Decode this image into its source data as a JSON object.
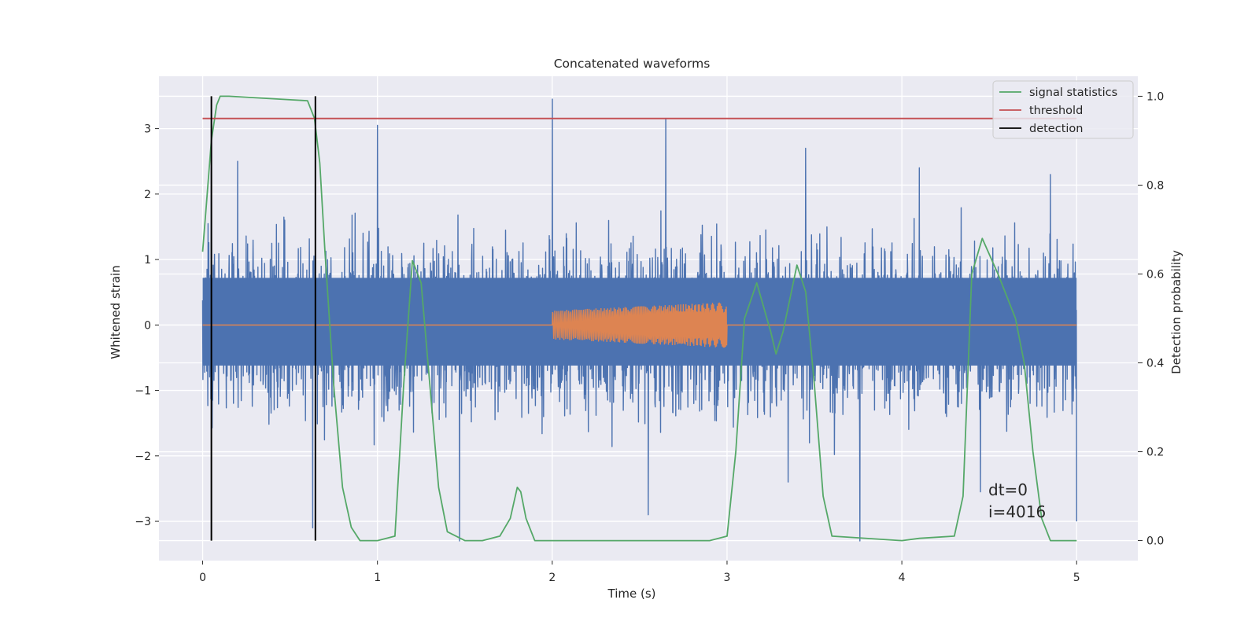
{
  "chart_data": {
    "type": "line",
    "title": "Concatenated waveforms",
    "xlabel": "Time (s)",
    "ylabel": "Whitened strain",
    "y2label": "Detection probability",
    "xlim": [
      -0.25,
      5.35
    ],
    "ylim": [
      -3.6,
      3.8
    ],
    "y2lim": [
      -0.045,
      1.045
    ],
    "x_ticks": [
      "0",
      "1",
      "2",
      "3",
      "4",
      "5"
    ],
    "y_ticks": [
      "−3",
      "−2",
      "−1",
      "0",
      "1",
      "2",
      "3"
    ],
    "y2_ticks": [
      "0.0",
      "0.2",
      "0.4",
      "0.6",
      "0.8",
      "1.0"
    ],
    "grid": true,
    "legend_position": "top-right",
    "legend": [
      "signal statistics",
      "threshold",
      "detection"
    ],
    "annotation_lines": [
      "dt=0",
      "i=4016"
    ],
    "colors": {
      "background": "#EAEAF2",
      "grid": "#FFFFFF",
      "strain": "#4C72B0",
      "waveform": "#DD8452",
      "statistics": "#55A868",
      "threshold": "#C44E52",
      "detection": "#000000"
    },
    "series": [
      {
        "name": "",
        "axis": "left",
        "kind": "noise",
        "x_range": [
          0,
          5
        ],
        "typical_abs_max": 2.3,
        "peak_points": [
          [
            0.05,
            2.4
          ],
          [
            0.2,
            2.5
          ],
          [
            0.63,
            -3.1
          ],
          [
            1.0,
            3.05
          ],
          [
            1.47,
            -3.3
          ],
          [
            2.0,
            3.45
          ],
          [
            2.55,
            -2.9
          ],
          [
            2.65,
            3.15
          ],
          [
            3.35,
            -2.4
          ],
          [
            3.45,
            2.7
          ],
          [
            3.76,
            -3.3
          ],
          [
            4.1,
            2.4
          ],
          [
            4.45,
            -2.55
          ],
          [
            4.85,
            2.3
          ],
          [
            5.0,
            -3.0
          ]
        ]
      },
      {
        "name": "",
        "axis": "left",
        "kind": "chirp",
        "x_range": [
          2.0,
          3.0
        ],
        "amplitude_start": 0.22,
        "amplitude_end": 0.35
      },
      {
        "name": "signal statistics",
        "axis": "right",
        "x": [
          0.0,
          0.02,
          0.05,
          0.08,
          0.1,
          0.15,
          0.6,
          0.64,
          0.67,
          0.7,
          0.75,
          0.8,
          0.85,
          0.9,
          1.0,
          1.1,
          1.15,
          1.2,
          1.25,
          1.3,
          1.35,
          1.4,
          1.5,
          1.6,
          1.7,
          1.76,
          1.8,
          1.82,
          1.85,
          1.9,
          2.0,
          2.5,
          2.9,
          3.0,
          3.05,
          3.1,
          3.17,
          3.25,
          3.28,
          3.32,
          3.4,
          3.45,
          3.5,
          3.55,
          3.6,
          4.0,
          4.1,
          4.3,
          4.35,
          4.4,
          4.46,
          4.55,
          4.65,
          4.7,
          4.75,
          4.8,
          4.85,
          5.0
        ],
        "y": [
          0.65,
          0.75,
          0.9,
          0.98,
          1.0,
          1.0,
          0.99,
          0.95,
          0.85,
          0.65,
          0.35,
          0.12,
          0.03,
          0.0,
          0.0,
          0.01,
          0.35,
          0.63,
          0.58,
          0.35,
          0.12,
          0.02,
          0.0,
          0.0,
          0.01,
          0.05,
          0.12,
          0.11,
          0.05,
          0.0,
          0.0,
          0.0,
          0.0,
          0.01,
          0.2,
          0.5,
          0.58,
          0.47,
          0.42,
          0.47,
          0.62,
          0.56,
          0.35,
          0.1,
          0.01,
          0.0,
          0.005,
          0.01,
          0.1,
          0.6,
          0.68,
          0.6,
          0.5,
          0.4,
          0.2,
          0.05,
          0.0,
          0.0
        ]
      },
      {
        "name": "threshold",
        "axis": "right",
        "x": [
          0,
          5
        ],
        "y": [
          0.95,
          0.95
        ]
      },
      {
        "name": "detection",
        "axis": "right",
        "kind": "vlines",
        "x": [
          0.05,
          0.645
        ],
        "y_range": [
          0,
          1
        ]
      }
    ]
  }
}
